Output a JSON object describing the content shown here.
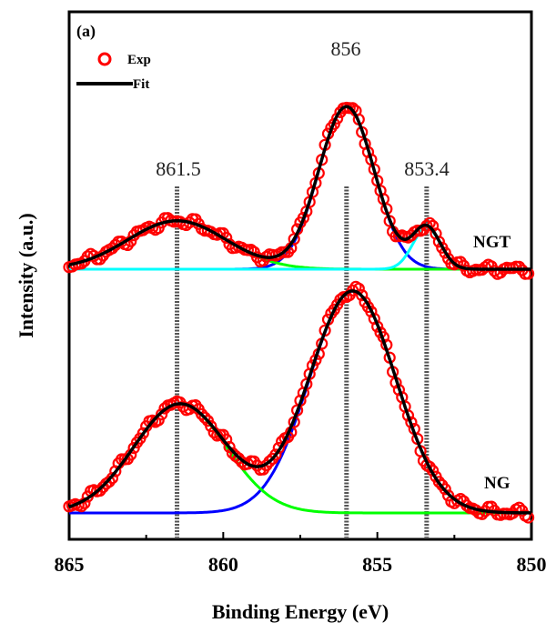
{
  "chart_data": {
    "type": "scatter",
    "panel_label": "(a)",
    "xlabel": "Binding Energy (eV)",
    "ylabel": "Intensity (a.u.)",
    "xlim": [
      865,
      850
    ],
    "x_reversed": true,
    "x_ticks": [
      "865",
      "860",
      "855",
      "850"
    ],
    "grid": false,
    "legend": {
      "position": "top-left",
      "entries": [
        {
          "name": "Exp",
          "marker": "circle",
          "color": "#ff0000"
        },
        {
          "name": "Fit",
          "marker": "line",
          "color": "#000000"
        }
      ]
    },
    "peak_markers": [
      {
        "x": 861.5,
        "label": "861.5"
      },
      {
        "x": 856,
        "label": "856"
      },
      {
        "x": 853.4,
        "label": "853.4"
      }
    ],
    "spectra": [
      {
        "label": "NGT",
        "baseline": 0.0,
        "components": [
          {
            "center": 856.0,
            "height": 0.94,
            "sigma": 0.9,
            "color": "#0000ff"
          },
          {
            "center": 861.5,
            "height": 0.28,
            "sigma": 1.6,
            "color": "#00ff00"
          },
          {
            "center": 853.4,
            "height": 0.24,
            "sigma": 0.45,
            "color": "#00ffff"
          }
        ]
      },
      {
        "label": "NG",
        "baseline": 0.0,
        "components": [
          {
            "center": 855.8,
            "height": 1.22,
            "sigma": 1.4,
            "color": "#0000ff"
          },
          {
            "center": 861.4,
            "height": 0.6,
            "sigma": 1.5,
            "color": "#00ff00"
          }
        ]
      }
    ]
  },
  "colors": {
    "exp": "#ff0000",
    "fit": "#000000",
    "marker_line": "#555555"
  }
}
